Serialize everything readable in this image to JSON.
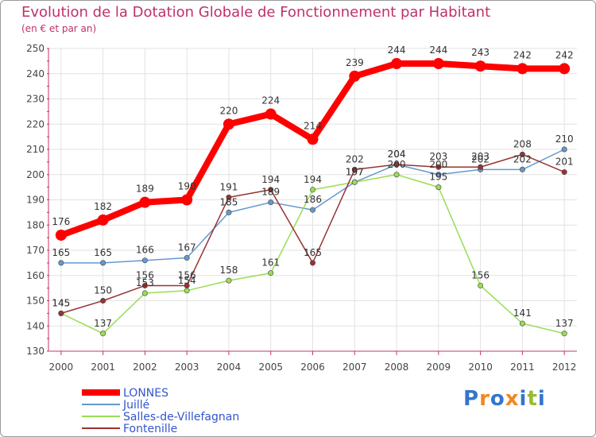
{
  "chart_data": {
    "type": "line",
    "title": "Evolution de la Dotation Globale de Fonctionnement par Habitant",
    "subtitle": "(en € et par an)",
    "xlabel": "",
    "ylabel": "",
    "ylim": [
      130,
      250
    ],
    "yticks": [
      130,
      140,
      150,
      160,
      170,
      180,
      190,
      200,
      210,
      220,
      230,
      240,
      250
    ],
    "x": [
      2000,
      2001,
      2002,
      2003,
      2004,
      2005,
      2006,
      2007,
      2008,
      2009,
      2010,
      2011,
      2012
    ],
    "grid": true,
    "legend_position": "bottom-left",
    "series": [
      {
        "name": "LONNES",
        "color": "#ff0000",
        "values": [
          176,
          182,
          189,
          190,
          220,
          224,
          214,
          239,
          244,
          244,
          243,
          242,
          242
        ]
      },
      {
        "name": "Juillé",
        "color": "#6699cc",
        "values": [
          165,
          165,
          166,
          167,
          185,
          189,
          186,
          197,
          204,
          200,
          202,
          202,
          210
        ]
      },
      {
        "name": "Salles-de-Villefagnan",
        "color": "#99dd55",
        "values": [
          145,
          137,
          153,
          154,
          158,
          161,
          194,
          197,
          200,
          195,
          156,
          141,
          137
        ]
      },
      {
        "name": "Fontenille",
        "color": "#993333",
        "values": [
          145,
          150,
          156,
          156,
          191,
          194,
          165,
          202,
          204,
          203,
          203,
          208,
          201
        ]
      }
    ]
  },
  "logo": {
    "text": "Proxiti",
    "letters": [
      "P",
      "r",
      "o",
      "x",
      "i",
      "t",
      "i"
    ],
    "colors": [
      "#3377cc",
      "#ee8822",
      "#3377cc",
      "#ee8822",
      "#3377cc",
      "#99bb33",
      "#3377cc"
    ]
  }
}
